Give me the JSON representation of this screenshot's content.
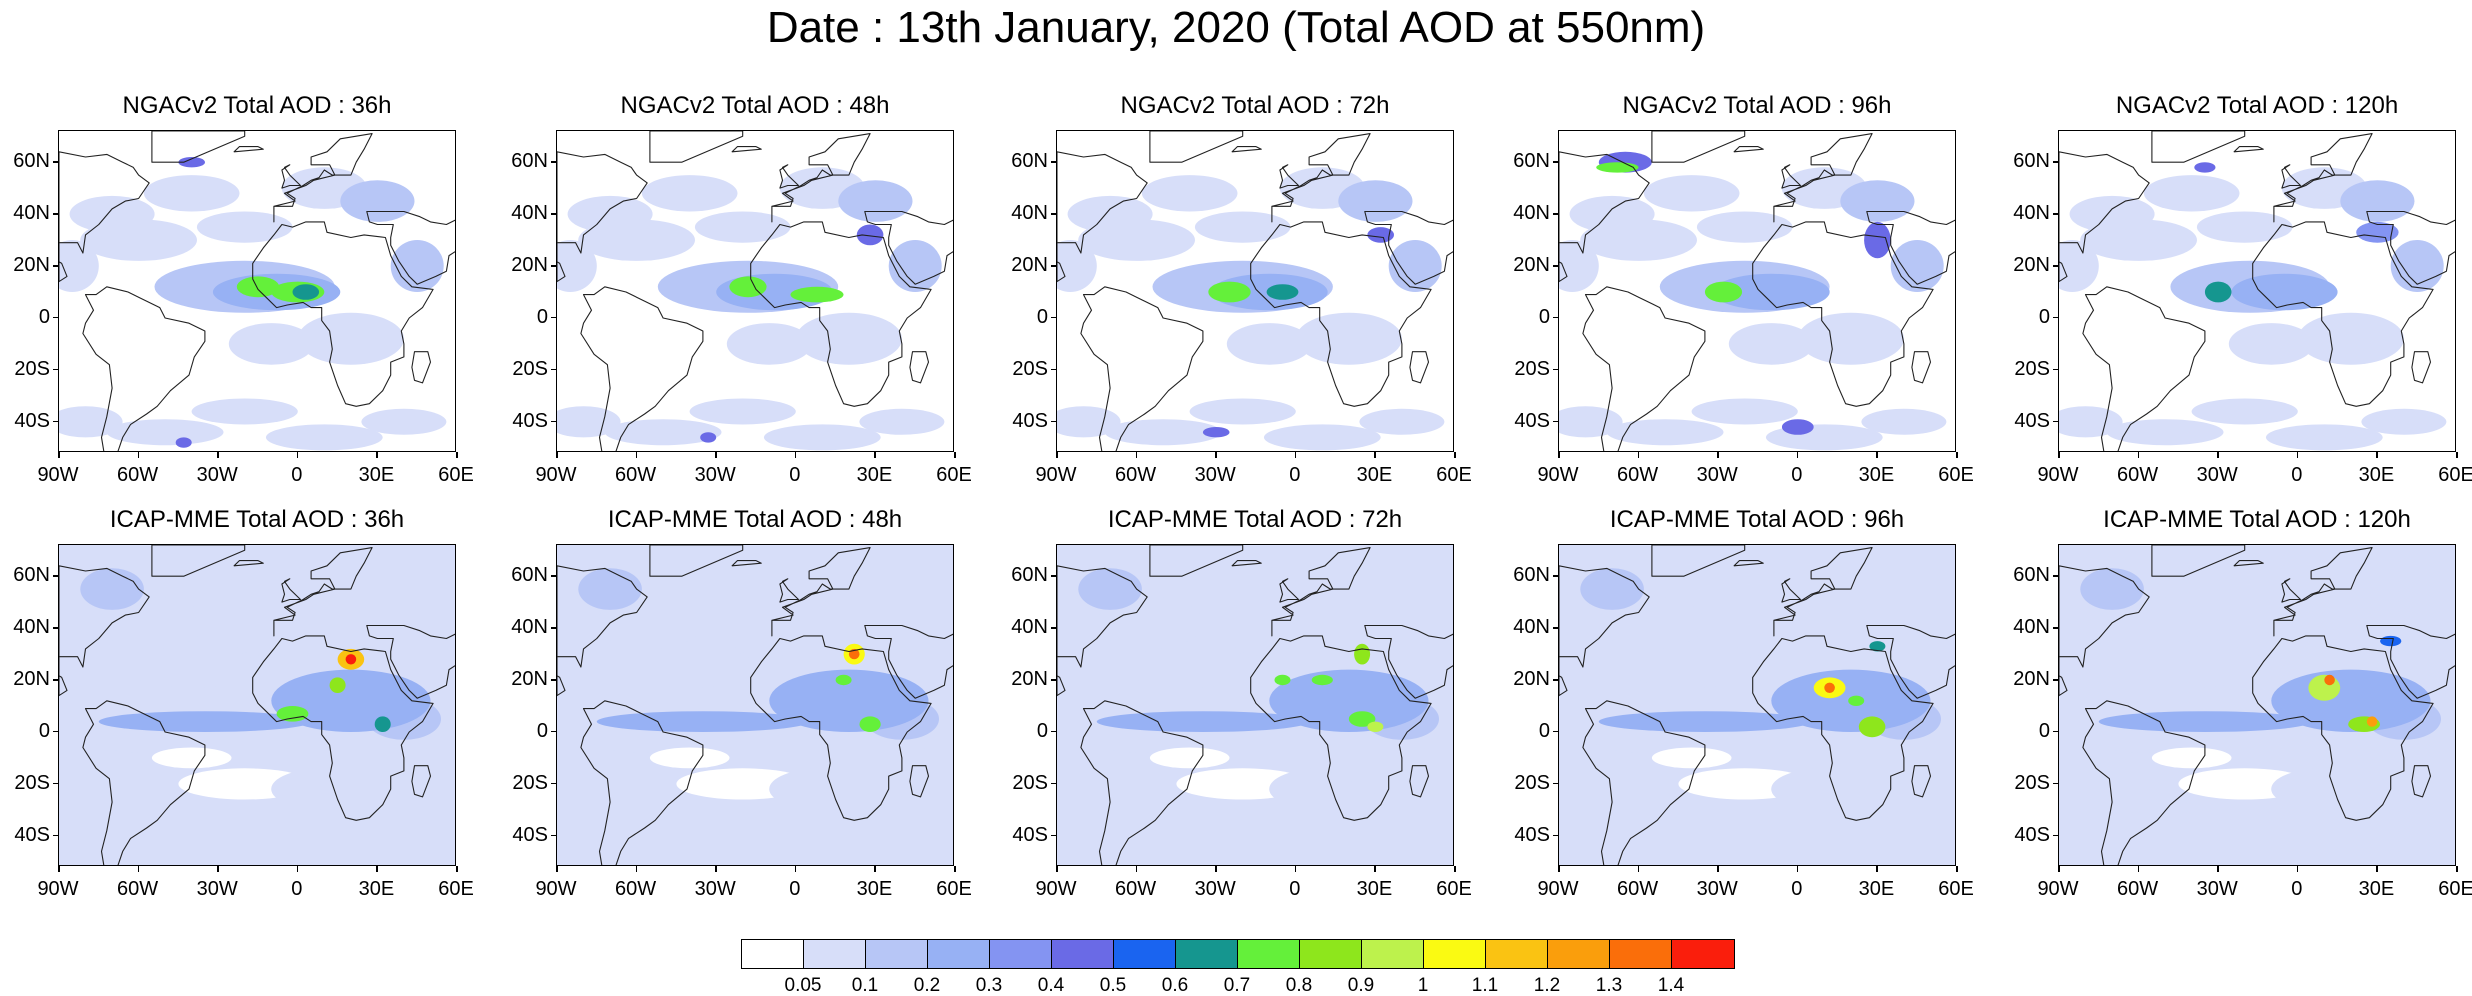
{
  "figure": {
    "title": "Date : 13th January, 2020 (Total AOD at 550nm)"
  },
  "lat_labels": [
    "60N",
    "40N",
    "20N",
    "0",
    "20S",
    "40S"
  ],
  "lat_values": [
    60,
    40,
    20,
    0,
    -20,
    -40
  ],
  "lon_labels": [
    "90W",
    "60W",
    "30W",
    "0",
    "30E",
    "60E"
  ],
  "lon_values": [
    -90,
    -60,
    -30,
    0,
    30,
    60
  ],
  "map_extent": {
    "lon": [
      -90,
      60
    ],
    "lat": [
      -52,
      72
    ]
  },
  "panels": [
    {
      "title": "NGACv2 Total AOD : 36h",
      "model": "ngac",
      "hour": 36
    },
    {
      "title": "NGACv2 Total AOD : 48h",
      "model": "ngac",
      "hour": 48
    },
    {
      "title": "NGACv2 Total AOD : 72h",
      "model": "ngac",
      "hour": 72
    },
    {
      "title": "NGACv2 Total AOD : 96h",
      "model": "ngac",
      "hour": 96
    },
    {
      "title": "NGACv2 Total AOD : 120h",
      "model": "ngac",
      "hour": 120
    },
    {
      "title": "ICAP-MME Total AOD : 36h",
      "model": "icap",
      "hour": 36
    },
    {
      "title": "ICAP-MME Total AOD : 48h",
      "model": "icap",
      "hour": 48
    },
    {
      "title": "ICAP-MME Total AOD : 72h",
      "model": "icap",
      "hour": 72
    },
    {
      "title": "ICAP-MME Total AOD : 96h",
      "model": "icap",
      "hour": 96
    },
    {
      "title": "ICAP-MME Total AOD : 120h",
      "model": "icap",
      "hour": 120
    }
  ],
  "colorbar": {
    "colors": [
      "#ffffff",
      "#d7def9",
      "#b7c6f6",
      "#97b1f4",
      "#8494f2",
      "#6a6ae6",
      "#1a64f0",
      "#15968f",
      "#64f03a",
      "#8ee61c",
      "#bdf24c",
      "#fafa12",
      "#fac312",
      "#fa9e0c",
      "#fa6e0a",
      "#fa1e0c"
    ],
    "labels": [
      "0.05",
      "0.1",
      "0.2",
      "0.3",
      "0.4",
      "0.5",
      "0.6",
      "0.7",
      "0.8",
      "0.9",
      "1",
      "1.1",
      "1.2",
      "1.3",
      "1.4"
    ]
  }
}
